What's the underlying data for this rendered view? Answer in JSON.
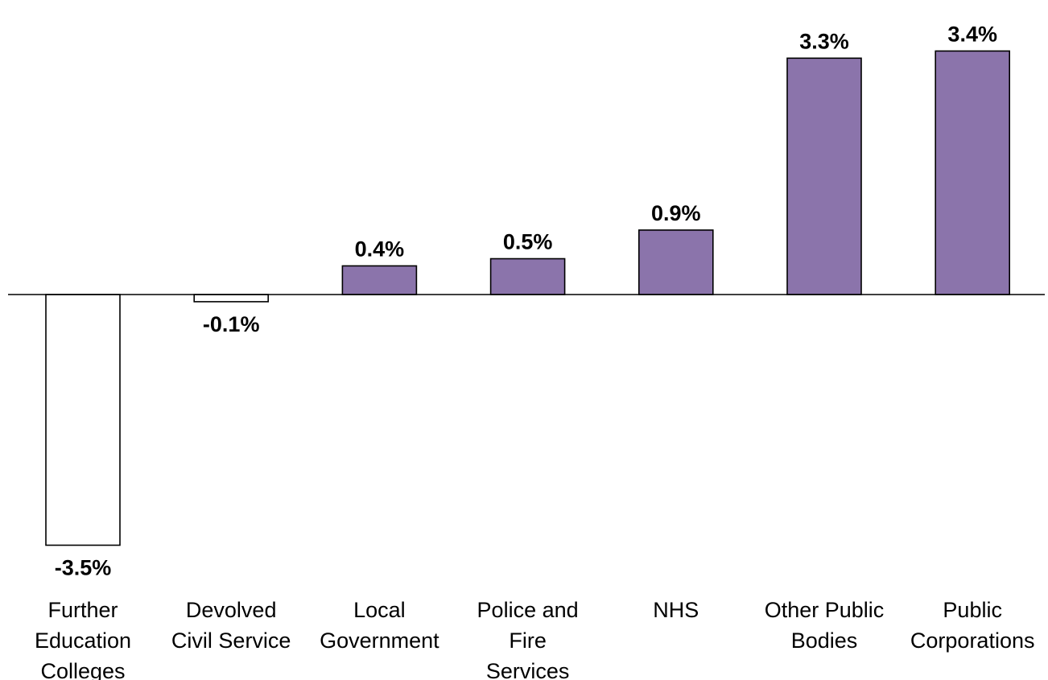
{
  "chart_data": {
    "type": "bar",
    "categories": [
      "Further Education Colleges",
      "Devolved Civil Service",
      "Local Government",
      "Police and Fire Services",
      "NHS",
      "Other Public Bodies",
      "Public Corporations"
    ],
    "category_label_lines": [
      [
        "Further",
        "Education",
        "Colleges"
      ],
      [
        "Devolved",
        "Civil Service"
      ],
      [
        "Local",
        "Government"
      ],
      [
        "Police and",
        "Fire",
        "Services"
      ],
      [
        "NHS"
      ],
      [
        "Other Public",
        "Bodies"
      ],
      [
        "Public",
        "Corporations"
      ]
    ],
    "values": [
      -3.5,
      -0.1,
      0.4,
      0.5,
      0.9,
      3.3,
      3.4
    ],
    "data_labels": [
      "-3.5%",
      "-0.1%",
      "0.4%",
      "0.5%",
      "0.9%",
      "3.3%",
      "3.4%"
    ],
    "title": "",
    "xlabel": "",
    "ylabel": "",
    "ylim": [
      -3.5,
      3.4
    ],
    "grid": false,
    "legend": "none",
    "colors": {
      "positive_fill": "#8B74AB",
      "negative_fill": "#FFFFFF",
      "bar_stroke": "#000000",
      "axis": "#000000"
    }
  }
}
